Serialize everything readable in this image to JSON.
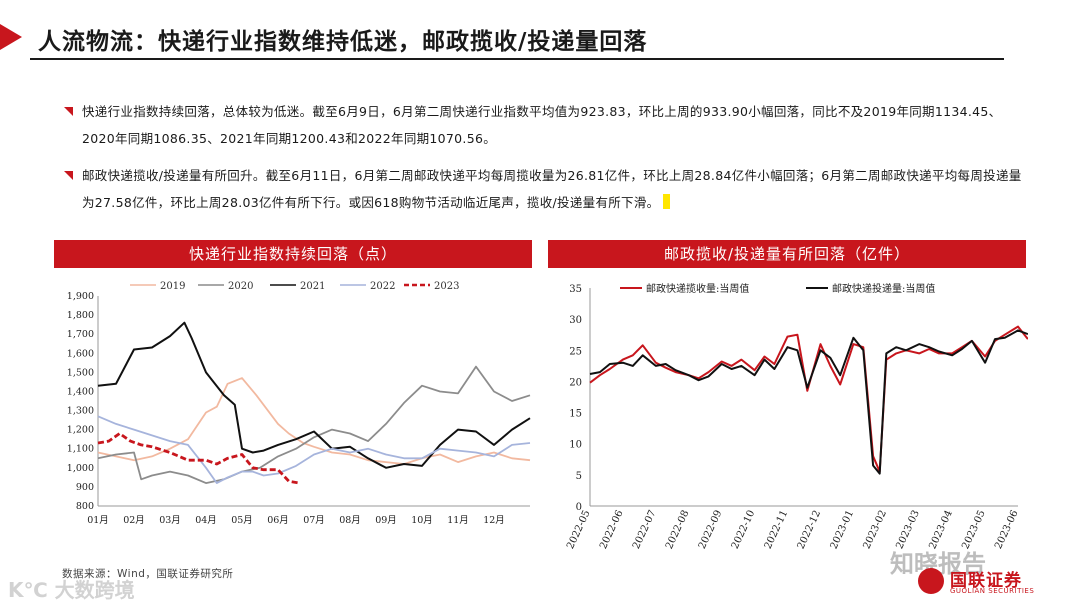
{
  "title": "人流物流：快递行业指数维持低迷，邮政揽收/投递量回落",
  "bullets": [
    "快递行业指数持续回落，总体较为低迷。截至6月9日，6月第二周快递行业指数平均值为923.83，环比上周的933.90小幅回落，同比不及2019年同期1134.45、2020年同期1086.35、2021年同期1200.43和2022年同期1070.56。",
    "邮政快递揽收/投递量有所回升。截至6月11日，6月第二周邮政快递平均每周揽收量为26.81亿件，环比上周28.84亿件小幅回落；6月第二周邮政快递平均每周投递量为27.58亿件，环比上周28.03亿件有所下行。或因618购物节活动临近尾声，揽收/投递量有所下滑。"
  ],
  "source": "数据来源：Wind，国联证券研究所",
  "watermark_left": "K℃ 大数跨境",
  "watermark_right": "知晓报告",
  "logo": {
    "cn": "国联证券",
    "en": "GUOLIAN SECURITIES"
  },
  "colors": {
    "accent": "#c8161d",
    "s2019": "#f2b9a0",
    "s2020": "#8c8c8c",
    "s2021": "#111111",
    "s2022": "#a6b4dc",
    "s2023": "#c8161d"
  },
  "chart_data": [
    {
      "type": "line",
      "title": "快递行业指数持续回落（点）",
      "categories": [
        "01月",
        "02月",
        "03月",
        "04月",
        "05月",
        "06月",
        "07月",
        "08月",
        "09月",
        "10月",
        "11月",
        "12月"
      ],
      "ylim": [
        800,
        1900
      ],
      "yticks": [
        "800",
        "900",
        "1,000",
        "1,100",
        "1,200",
        "1,300",
        "1,400",
        "1,500",
        "1,600",
        "1,700",
        "1,800",
        "1,900"
      ],
      "legend_position": "top",
      "series": [
        {
          "name": "2019",
          "style": "solid",
          "x": [
            0,
            0.5,
            1,
            1.5,
            2,
            2.5,
            3,
            3.3,
            3.6,
            4,
            4.4,
            5,
            5.3,
            5.7,
            6,
            6.5,
            7,
            7.5,
            8,
            8.5,
            9,
            9.5,
            10,
            10.5,
            11,
            11.5,
            12
          ],
          "values": [
            1080,
            1060,
            1040,
            1060,
            1100,
            1150,
            1290,
            1320,
            1440,
            1470,
            1380,
            1230,
            1180,
            1130,
            1110,
            1080,
            1070,
            1040,
            1030,
            1020,
            1050,
            1070,
            1030,
            1060,
            1080,
            1050,
            1040
          ]
        },
        {
          "name": "2020",
          "style": "solid",
          "x": [
            0,
            0.5,
            1,
            1.2,
            1.5,
            2,
            2.5,
            3,
            3.5,
            4,
            4.5,
            5,
            5.5,
            6,
            6.5,
            7,
            7.5,
            8,
            8.5,
            9,
            9.5,
            10,
            10.5,
            11,
            11.5,
            12
          ],
          "values": [
            1050,
            1070,
            1080,
            940,
            960,
            980,
            960,
            920,
            940,
            980,
            1000,
            1060,
            1100,
            1160,
            1200,
            1180,
            1140,
            1230,
            1340,
            1430,
            1400,
            1390,
            1530,
            1400,
            1350,
            1380
          ]
        },
        {
          "name": "2021",
          "style": "solid",
          "x": [
            0,
            0.5,
            1,
            1.5,
            2,
            2.4,
            2.6,
            3,
            3.5,
            3.8,
            4,
            4.3,
            4.6,
            5,
            5.5,
            6,
            6.5,
            7,
            7.5,
            8,
            8.5,
            9,
            9.5,
            10,
            10.5,
            11,
            11.5,
            12
          ],
          "values": [
            1430,
            1440,
            1620,
            1630,
            1690,
            1760,
            1680,
            1500,
            1380,
            1330,
            1100,
            1080,
            1090,
            1120,
            1150,
            1190,
            1100,
            1110,
            1050,
            1000,
            1020,
            1010,
            1120,
            1200,
            1190,
            1120,
            1200,
            1260
          ]
        },
        {
          "name": "2022",
          "style": "solid",
          "x": [
            0,
            0.5,
            1,
            1.5,
            2,
            2.5,
            3,
            3.3,
            3.6,
            4,
            4.3,
            4.6,
            5,
            5.5,
            6,
            6.5,
            7,
            7.5,
            8,
            8.5,
            9,
            9.5,
            10,
            10.5,
            11,
            11.5,
            12
          ],
          "values": [
            1270,
            1230,
            1200,
            1170,
            1140,
            1120,
            1000,
            920,
            950,
            980,
            980,
            960,
            970,
            1010,
            1070,
            1100,
            1080,
            1100,
            1070,
            1050,
            1050,
            1100,
            1090,
            1080,
            1060,
            1120,
            1130
          ]
        },
        {
          "name": "2023",
          "style": "dashed",
          "x": [
            0,
            0.3,
            0.6,
            0.9,
            1.2,
            1.5,
            2,
            2.5,
            3,
            3.3,
            3.6,
            4,
            4.3,
            4.6,
            5,
            5.3,
            5.6
          ],
          "values": [
            1130,
            1140,
            1180,
            1140,
            1120,
            1110,
            1080,
            1040,
            1040,
            1020,
            1050,
            1070,
            1000,
            990,
            990,
            930,
            920
          ]
        }
      ]
    },
    {
      "type": "line",
      "title": "邮政揽收/投递量有所回落（亿件）",
      "categories": [
        "2022-05",
        "2022-06",
        "2022-07",
        "2022-08",
        "2022-09",
        "2022-10",
        "2022-11",
        "2022-12",
        "2023-01",
        "2023-02",
        "2023-03",
        "2023-04",
        "2023-05",
        "2023-06"
      ],
      "ylim": [
        0,
        35
      ],
      "yticks": [
        "0",
        "5",
        "10",
        "15",
        "20",
        "25",
        "30",
        "35"
      ],
      "legend_position": "top",
      "series": [
        {
          "name": "邮政快递揽收量:当周值",
          "style": "solid",
          "x": [
            0,
            0.3,
            0.6,
            1,
            1.3,
            1.6,
            2,
            2.3,
            2.6,
            3,
            3.3,
            3.6,
            4,
            4.3,
            4.6,
            5,
            5.3,
            5.6,
            6,
            6.3,
            6.6,
            7,
            7.3,
            7.6,
            8,
            8.3,
            8.6,
            8.8,
            9,
            9.3,
            9.6,
            10,
            10.3,
            10.6,
            11,
            11.3,
            11.6,
            12,
            12.3,
            12.6,
            13,
            13.3
          ],
          "values": [
            19.8,
            21,
            22,
            23.5,
            24.2,
            25.8,
            23,
            22.2,
            21.5,
            21,
            20.5,
            21.5,
            23.2,
            22.5,
            23.5,
            21.8,
            24,
            22.8,
            27.2,
            27.5,
            18.5,
            26,
            22.5,
            19.5,
            26,
            25.5,
            8,
            5.5,
            23.5,
            24.5,
            25,
            24.5,
            25.2,
            24.5,
            24.5,
            25.5,
            26.5,
            24,
            26.5,
            27.5,
            28.8,
            26.8
          ]
        },
        {
          "name": "邮政快递投递量:当周值",
          "style": "solid",
          "x": [
            0,
            0.3,
            0.6,
            1,
            1.3,
            1.6,
            2,
            2.3,
            2.6,
            3,
            3.3,
            3.6,
            4,
            4.3,
            4.6,
            5,
            5.3,
            5.6,
            6,
            6.3,
            6.6,
            7,
            7.3,
            7.6,
            8,
            8.3,
            8.6,
            8.8,
            9,
            9.3,
            9.6,
            10,
            10.3,
            10.6,
            11,
            11.3,
            11.6,
            12,
            12.3,
            12.6,
            13,
            13.3
          ],
          "values": [
            21.2,
            21.5,
            22.8,
            23,
            22.5,
            24.2,
            22.5,
            22.8,
            21.8,
            21,
            20.2,
            20.8,
            22.8,
            22,
            22.5,
            21,
            23.5,
            22,
            25.5,
            25,
            19,
            25,
            23.8,
            21,
            27,
            25,
            6.5,
            5.2,
            24.5,
            25.5,
            25,
            26,
            25.5,
            24.8,
            24.2,
            25.2,
            26.5,
            23,
            26.8,
            27,
            28.2,
            27.6
          ]
        }
      ]
    }
  ]
}
